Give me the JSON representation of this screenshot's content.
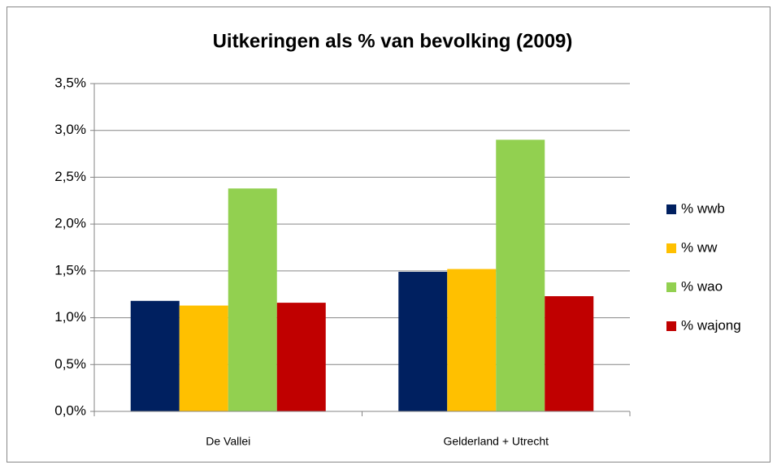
{
  "chart_data": {
    "type": "bar",
    "title": "Uitkeringen als % van bevolking (2009)",
    "categories": [
      "De Vallei",
      "Gelderland + Utrecht"
    ],
    "series": [
      {
        "name": "% wwb",
        "color": "#002060",
        "values": [
          1.18,
          1.49
        ]
      },
      {
        "name": "% ww",
        "color": "#ffc000",
        "values": [
          1.13,
          1.52
        ]
      },
      {
        "name": "% wao",
        "color": "#92d050",
        "values": [
          2.38,
          2.9
        ]
      },
      {
        "name": "% wajong",
        "color": "#c00000",
        "values": [
          1.16,
          1.23
        ]
      }
    ],
    "ylim": [
      0,
      3.5
    ],
    "yticks": [
      {
        "value": 0,
        "label": "0,0%"
      },
      {
        "value": 0.5,
        "label": "0,5%"
      },
      {
        "value": 1,
        "label": "1,0%"
      },
      {
        "value": 1.5,
        "label": "1,5%"
      },
      {
        "value": 2,
        "label": "2,0%"
      },
      {
        "value": 2.5,
        "label": "2,5%"
      },
      {
        "value": 3,
        "label": "3,0%"
      },
      {
        "value": 3.5,
        "label": "3,5%"
      }
    ],
    "grid": true,
    "legend": "right"
  }
}
